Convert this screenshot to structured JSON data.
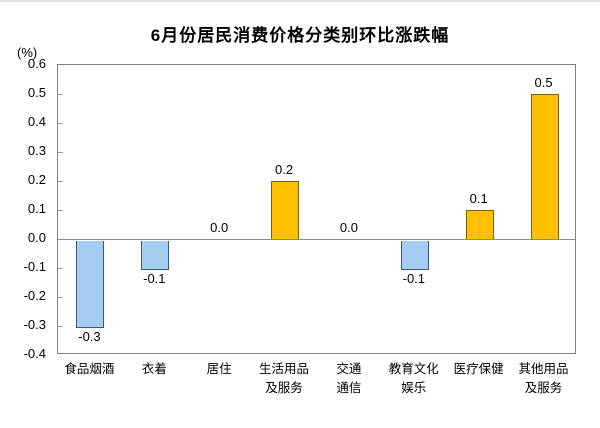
{
  "chart_data": {
    "type": "bar",
    "title": "6月份居民消费价格分类别环比涨跌幅",
    "unit_label": "(%)",
    "categories": [
      "食品烟酒",
      "衣着",
      "居住",
      "生活用品\n及服务",
      "交通\n通信",
      "教育文化\n娱乐",
      "医疗保健",
      "其他用品\n及服务"
    ],
    "values": [
      -0.3,
      -0.1,
      0.0,
      0.2,
      0.0,
      -0.1,
      0.1,
      0.5
    ],
    "value_labels": [
      "-0.3",
      "-0.1",
      "0.0",
      "0.2",
      "0.0",
      "-0.1",
      "0.1",
      "0.5"
    ],
    "ylim": [
      -0.4,
      0.6
    ],
    "y_ticks": [
      "0.6",
      "0.5",
      "0.4",
      "0.3",
      "0.2",
      "0.1",
      "0.0",
      "-0.1",
      "-0.2",
      "-0.3",
      "-0.4"
    ],
    "grid": false,
    "legend": null,
    "colors": {
      "positive_fill": "#FFC000",
      "positive_border": "#7F6000",
      "negative_fill": "#A5CCF1",
      "negative_border": "#3D5A73",
      "axis": "#808080",
      "text": "#000000"
    }
  }
}
